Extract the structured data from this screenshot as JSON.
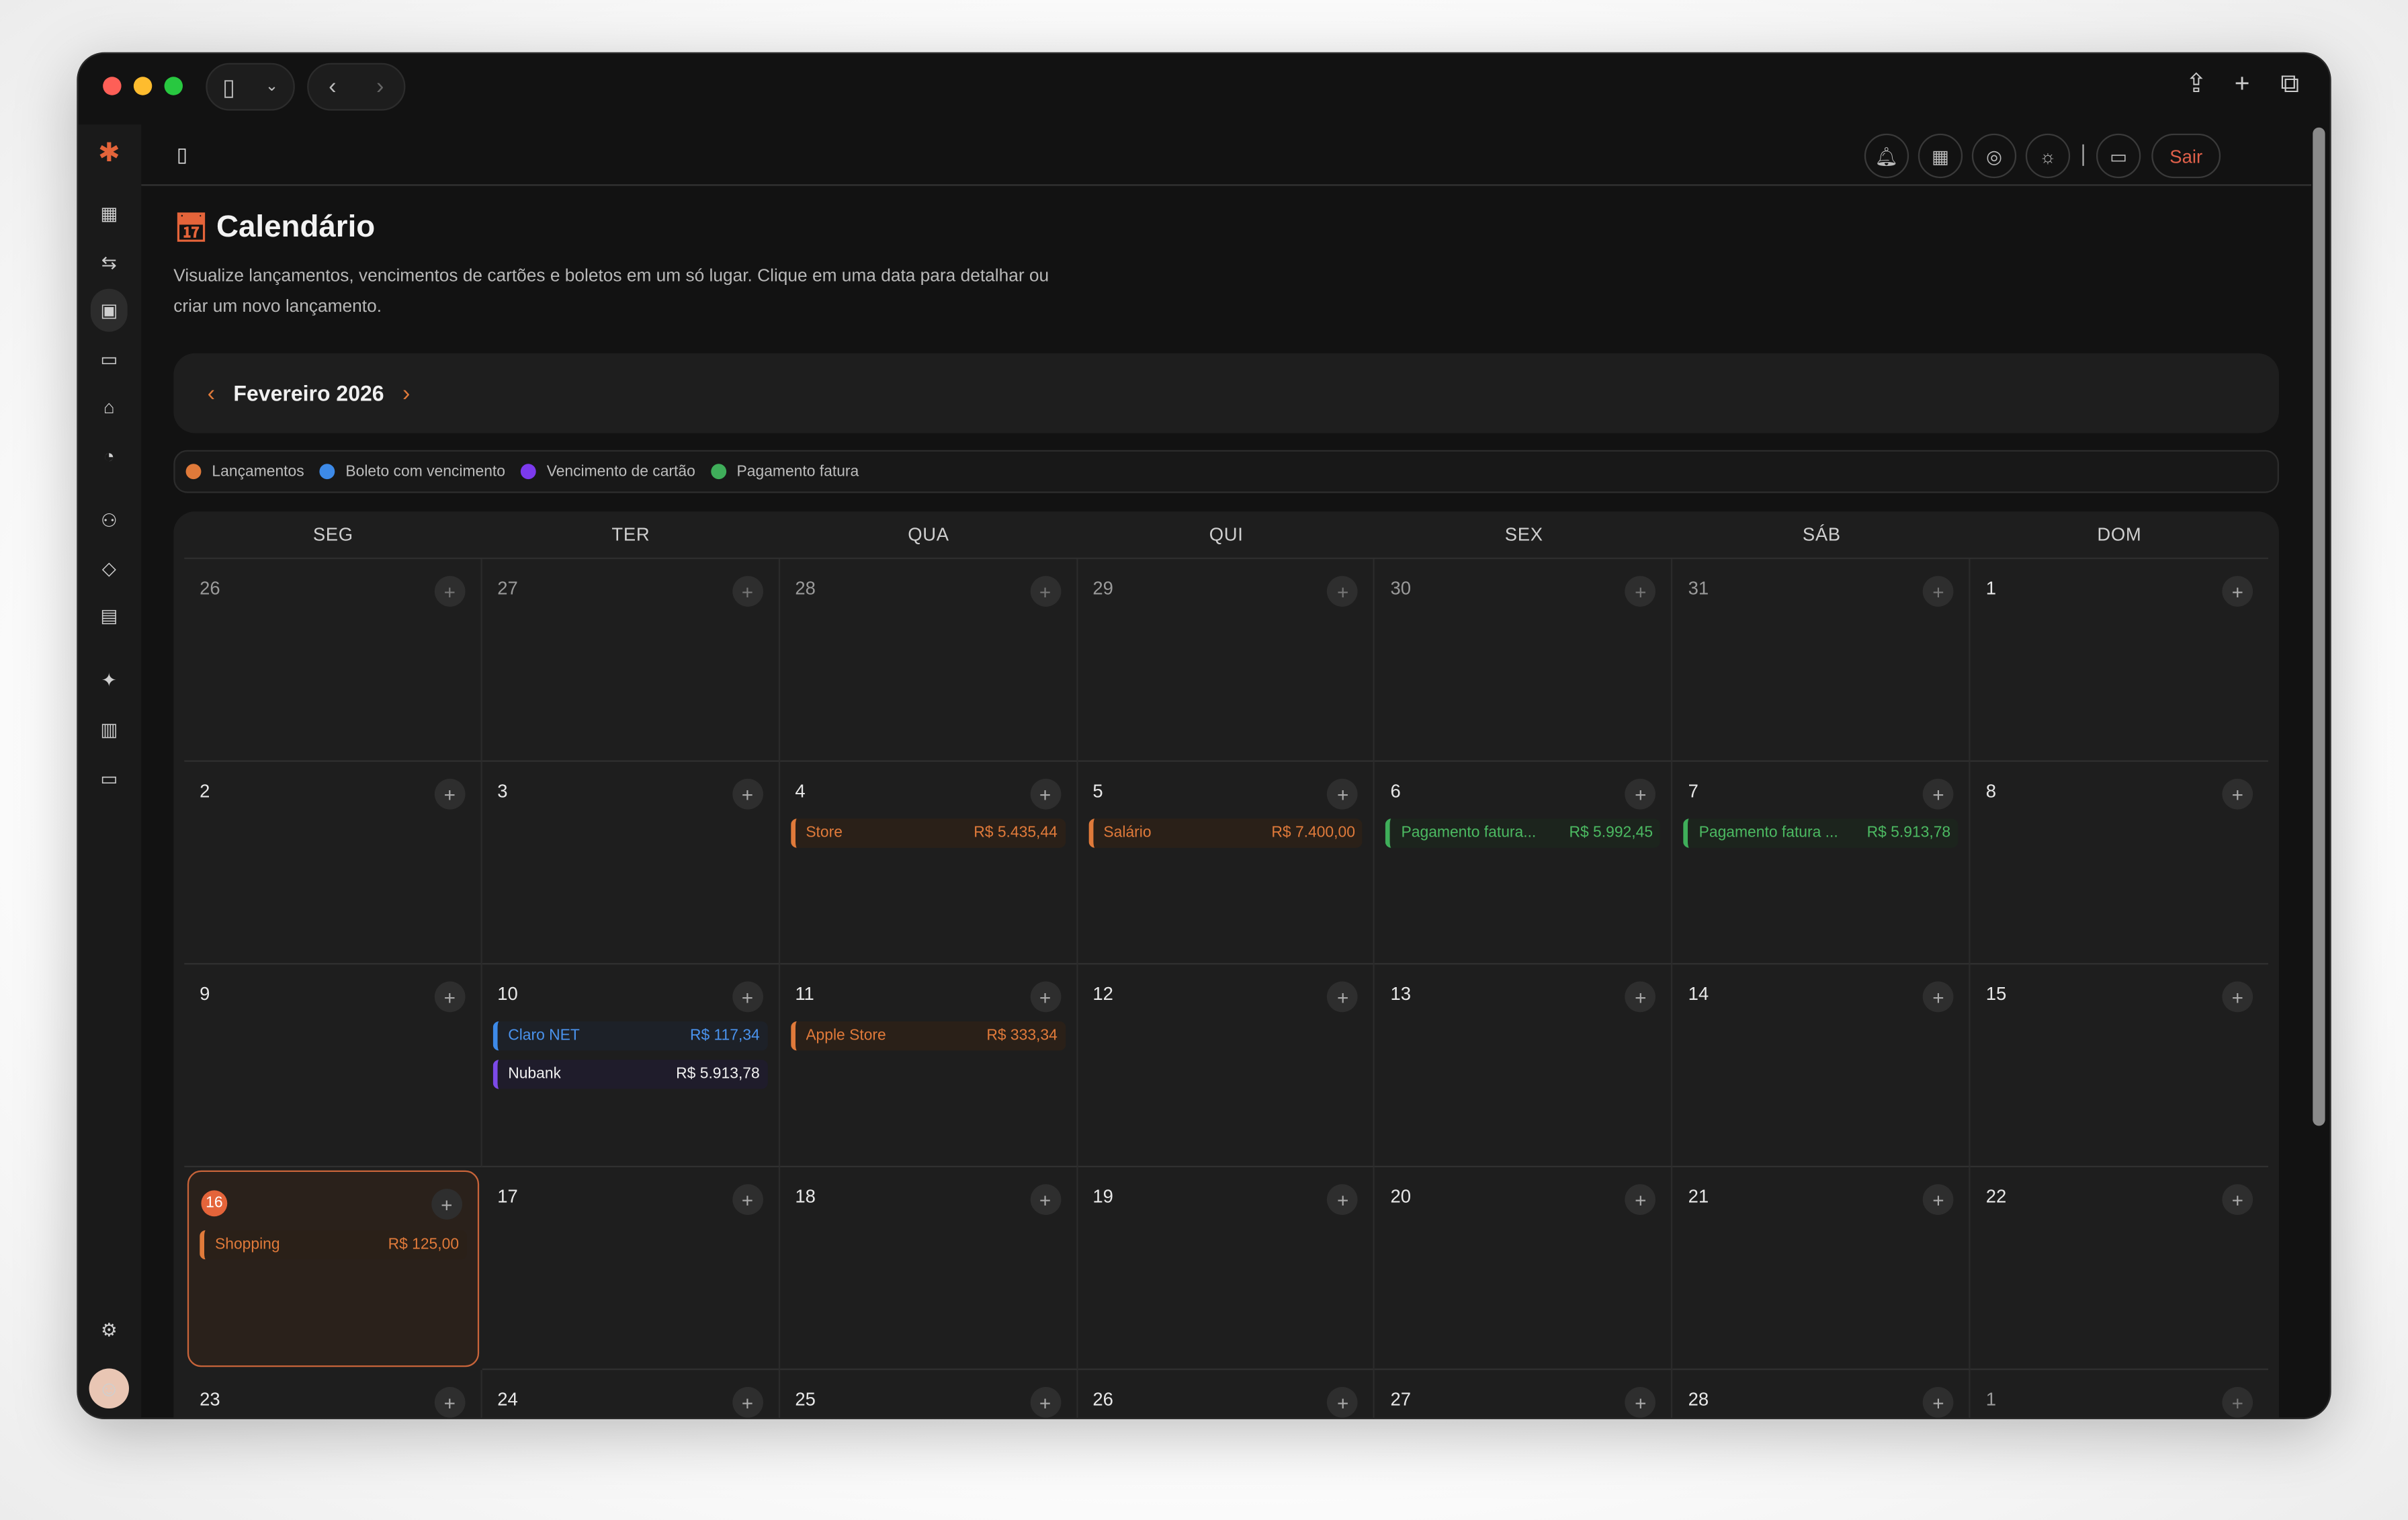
{
  "header": {
    "logout_label": "Sair"
  },
  "page": {
    "title": "Calendário",
    "description": "Visualize lançamentos, vencimentos de cartões e boletos em um só lugar. Clique em uma data para detalhar ou criar um novo lançamento."
  },
  "month": {
    "label": "Fevereiro 2026"
  },
  "legend": [
    {
      "label": "Lançamentos",
      "color": "#e07a3a"
    },
    {
      "label": "Boleto com vencimento",
      "color": "#3d8ae8"
    },
    {
      "label": "Vencimento de cartão",
      "color": "#7c3aed"
    },
    {
      "label": "Pagamento fatura",
      "color": "#3fae5a"
    }
  ],
  "weekdays": [
    "SEG",
    "TER",
    "QUA",
    "QUI",
    "SEX",
    "SÁB",
    "DOM"
  ],
  "days": [
    {
      "n": "26",
      "muted": true
    },
    {
      "n": "27",
      "muted": true
    },
    {
      "n": "28",
      "muted": true
    },
    {
      "n": "29",
      "muted": true
    },
    {
      "n": "30",
      "muted": true
    },
    {
      "n": "31",
      "muted": true
    },
    {
      "n": "1"
    },
    {
      "n": "2"
    },
    {
      "n": "3"
    },
    {
      "n": "4",
      "events": [
        {
          "name": "Store",
          "amount": "R$ 5.435,44",
          "type": "orange"
        }
      ]
    },
    {
      "n": "5",
      "events": [
        {
          "name": "Salário",
          "amount": "R$ 7.400,00",
          "type": "orange"
        }
      ]
    },
    {
      "n": "6",
      "events": [
        {
          "name": "Pagamento fatura...",
          "amount": "R$ 5.992,45",
          "type": "green"
        }
      ]
    },
    {
      "n": "7",
      "events": [
        {
          "name": "Pagamento fatura ...",
          "amount": "R$ 5.913,78",
          "type": "green"
        }
      ]
    },
    {
      "n": "8"
    },
    {
      "n": "9"
    },
    {
      "n": "10",
      "events": [
        {
          "name": "Claro NET",
          "amount": "R$ 117,34",
          "type": "blue"
        },
        {
          "name": "Nubank",
          "amount": "R$ 5.913,78",
          "type": "purple"
        }
      ]
    },
    {
      "n": "11",
      "events": [
        {
          "name": "Apple Store",
          "amount": "R$ 333,34",
          "type": "orange"
        }
      ]
    },
    {
      "n": "12"
    },
    {
      "n": "13"
    },
    {
      "n": "14"
    },
    {
      "n": "15"
    },
    {
      "n": "16",
      "today": true,
      "events": [
        {
          "name": "Shopping",
          "amount": "R$ 125,00",
          "type": "orange"
        }
      ]
    },
    {
      "n": "17"
    },
    {
      "n": "18"
    },
    {
      "n": "19"
    },
    {
      "n": "20"
    },
    {
      "n": "21"
    },
    {
      "n": "22"
    },
    {
      "n": "23"
    },
    {
      "n": "24"
    },
    {
      "n": "25"
    },
    {
      "n": "26"
    },
    {
      "n": "27"
    },
    {
      "n": "28"
    },
    {
      "n": "1",
      "muted": true
    }
  ]
}
